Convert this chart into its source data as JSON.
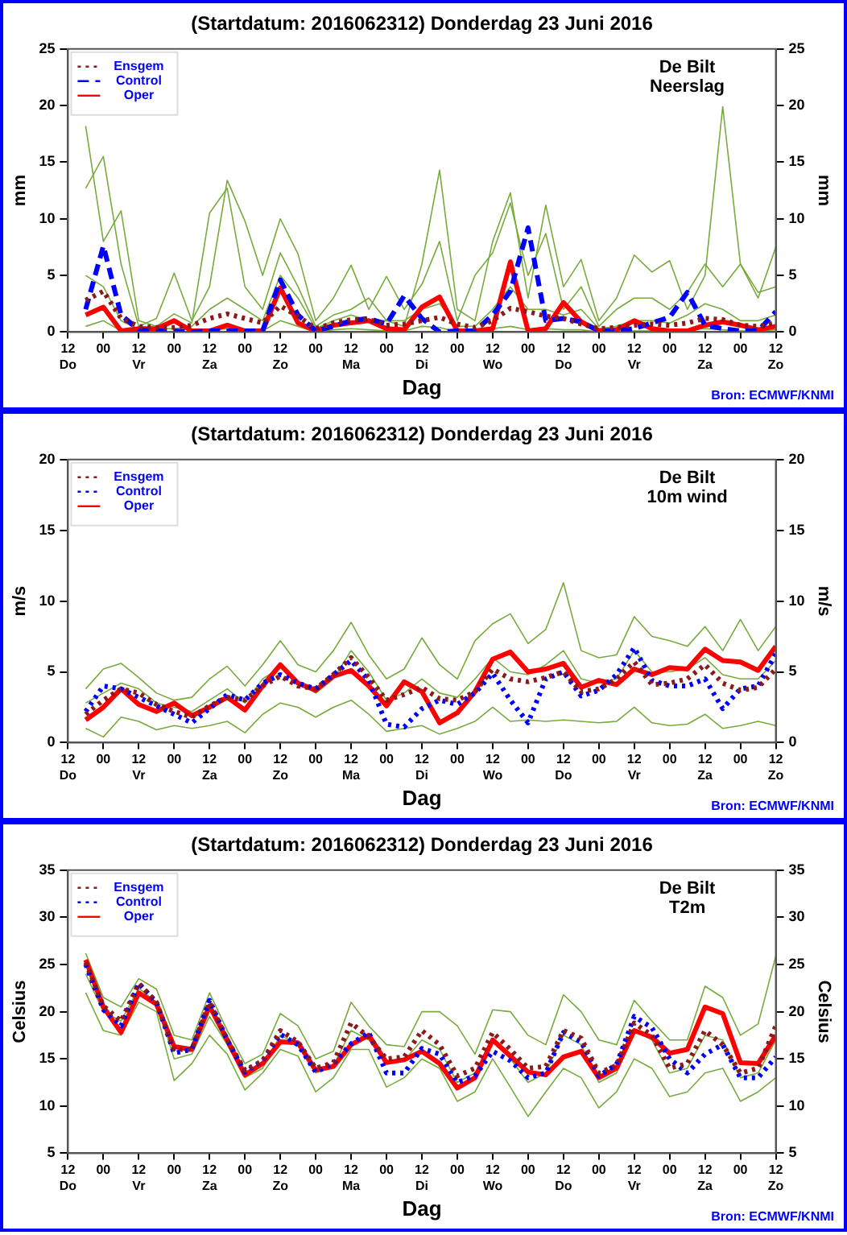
{
  "chart_data": [
    {
      "type": "line",
      "title": "(Startdatum: 2016062312) Donderdag 23 Juni 2016",
      "xlabel": "Dag",
      "ylabel": "mm",
      "y2label": "mm",
      "annotations": [
        "De Bilt",
        "Neerslag",
        "Bron: ECMWF/KNMI"
      ],
      "x": [
        "2016-06-23T18:00",
        "2016-06-24T00:00",
        "2016-06-24T06:00",
        "2016-06-24T12:00",
        "2016-06-24T18:00",
        "2016-06-25T00:00",
        "2016-06-25T06:00",
        "2016-06-25T12:00",
        "2016-06-25T18:00",
        "2016-06-26T00:00",
        "2016-06-26T06:00",
        "2016-06-26T12:00",
        "2016-06-26T18:00",
        "2016-06-27T00:00",
        "2016-06-27T06:00",
        "2016-06-27T12:00",
        "2016-06-27T18:00",
        "2016-06-28T00:00",
        "2016-06-28T06:00",
        "2016-06-28T12:00",
        "2016-06-28T18:00",
        "2016-06-29T00:00",
        "2016-06-29T06:00",
        "2016-06-29T12:00",
        "2016-06-29T18:00",
        "2016-06-30T00:00",
        "2016-06-30T06:00",
        "2016-06-30T12:00",
        "2016-06-30T18:00",
        "2016-07-01T00:00",
        "2016-07-01T06:00",
        "2016-07-01T12:00",
        "2016-07-01T18:00",
        "2016-07-02T00:00",
        "2016-07-02T06:00",
        "2016-07-02T12:00",
        "2016-07-02T18:00",
        "2016-07-03T00:00",
        "2016-07-03T06:00",
        "2016-07-03T12:00"
      ],
      "xlim": [
        "2016-06-23T12:00",
        "2016-07-03T12:00"
      ],
      "xticks": [
        {
          "value": "2016-06-23T12:00",
          "label": "12\nDo"
        },
        {
          "value": "2016-06-24T00:00",
          "label": "00"
        },
        {
          "value": "2016-06-24T12:00",
          "label": "12\nVr"
        },
        {
          "value": "2016-06-25T00:00",
          "label": "00"
        },
        {
          "value": "2016-06-25T12:00",
          "label": "12\nZa"
        },
        {
          "value": "2016-06-26T00:00",
          "label": "00"
        },
        {
          "value": "2016-06-26T12:00",
          "label": "12\nZo"
        },
        {
          "value": "2016-06-27T00:00",
          "label": "00"
        },
        {
          "value": "2016-06-27T12:00",
          "label": "12\nMa"
        },
        {
          "value": "2016-06-28T00:00",
          "label": "00"
        },
        {
          "value": "2016-06-28T12:00",
          "label": "12\nDi"
        },
        {
          "value": "2016-06-29T00:00",
          "label": "00"
        },
        {
          "value": "2016-06-29T12:00",
          "label": "12\nWo"
        },
        {
          "value": "2016-06-30T00:00",
          "label": "00"
        },
        {
          "value": "2016-06-30T12:00",
          "label": "12\nDo"
        },
        {
          "value": "2016-07-01T00:00",
          "label": "00"
        },
        {
          "value": "2016-07-01T12:00",
          "label": "12\nVr"
        },
        {
          "value": "2016-07-02T00:00",
          "label": "00"
        },
        {
          "value": "2016-07-02T12:00",
          "label": "12\nZa"
        },
        {
          "value": "2016-07-03T00:00",
          "label": "00"
        },
        {
          "value": "2016-07-03T12:00",
          "label": "12\nZo"
        }
      ],
      "ylim": [
        0,
        25
      ],
      "yticks": [
        0,
        5,
        10,
        15,
        20,
        25
      ],
      "y2lim": [
        0,
        25
      ],
      "y2ticks": [
        0,
        5,
        10,
        15,
        20,
        25
      ],
      "grid": false,
      "legend": "top left",
      "marker": "none",
      "series": [
        {
          "name": "Ensgem",
          "color": "#8b1a1a",
          "line_style": "dotted",
          "values": [
            2.8,
            3.6,
            1.2,
            0.5,
            0.4,
            0.4,
            0.6,
            1.2,
            1.6,
            1.2,
            0.8,
            2.3,
            1.4,
            0.3,
            0.8,
            1.1,
            1.1,
            0.6,
            0.7,
            1.0,
            1.3,
            0.7,
            0.4,
            1.0,
            2.1,
            1.8,
            1.4,
            1.2,
            0.7,
            0.3,
            0.4,
            0.6,
            0.7,
            0.6,
            0.8,
            1.2,
            1.1,
            0.6,
            0.5,
            0.8
          ]
        },
        {
          "name": "Control",
          "color": "#0000ff",
          "line_style": "dashed",
          "values": [
            2.0,
            7.6,
            1.5,
            0.2,
            0.1,
            0.1,
            0.0,
            0.1,
            0.1,
            0.1,
            0.1,
            4.6,
            1.5,
            0.1,
            0.5,
            1.0,
            1.2,
            0.7,
            3.2,
            1.2,
            0.0,
            0.1,
            0.1,
            1.5,
            3.6,
            9.2,
            1.0,
            1.2,
            0.9,
            0.1,
            0.1,
            0.3,
            0.8,
            1.3,
            3.5,
            0.6,
            0.3,
            0.1,
            0.1,
            1.8
          ]
        },
        {
          "name": "Oper",
          "color": "#ff0000",
          "line_style": "solid",
          "values": [
            1.5,
            2.2,
            0.1,
            0.3,
            0.3,
            1.0,
            0.1,
            0.1,
            0.6,
            0.1,
            0.1,
            3.9,
            0.8,
            0.1,
            0.6,
            0.8,
            1.0,
            0.3,
            0.2,
            2.2,
            3.1,
            0.1,
            0.1,
            0.3,
            6.2,
            0.1,
            0.3,
            2.6,
            0.9,
            0.1,
            0.2,
            1.0,
            0.3,
            0.1,
            0.1,
            0.6,
            0.9,
            0.6,
            0.2,
            0.5
          ]
        },
        {
          "color": "#78aa3c",
          "values": [
            18.2,
            8,
            10.7,
            1,
            0.5,
            1.6,
            0.8,
            10.5,
            12.7,
            4,
            2,
            7,
            4,
            0.5,
            1.5,
            2,
            3,
            1,
            0.5,
            6,
            14.3,
            2,
            1,
            8,
            12.3,
            3,
            11.2,
            4,
            6.4,
            1,
            3,
            6.8,
            5.3,
            6.3,
            2,
            5,
            19.9,
            6,
            3,
            7.5
          ]
        },
        {
          "color": "#78aa3c",
          "values": [
            12.7,
            15.5,
            6,
            0.5,
            1.2,
            5.2,
            1,
            4,
            13.4,
            9.8,
            5,
            10,
            6.9,
            1,
            3,
            5.9,
            2,
            4.9,
            2,
            4.2,
            8,
            1,
            5,
            7,
            11.4,
            5,
            8.7,
            2,
            4,
            0.5,
            2,
            3,
            3,
            2,
            3.5,
            6,
            4,
            6,
            3.5,
            4
          ]
        },
        {
          "color": "#78aa3c",
          "values": [
            5,
            4,
            1,
            0.2,
            0.3,
            0.3,
            0.5,
            2,
            3,
            2,
            1,
            5,
            3,
            0.3,
            1,
            1.5,
            1,
            1,
            1,
            2,
            2.5,
            0.5,
            0.5,
            2,
            4,
            2,
            2,
            1.5,
            2,
            0.3,
            0.5,
            1,
            1,
            0.8,
            1.5,
            2.5,
            2,
            1,
            1,
            1.5
          ]
        },
        {
          "color": "#78aa3c",
          "values": [
            0.5,
            1,
            0.1,
            0,
            0,
            0,
            0,
            0.2,
            0.3,
            0.2,
            0.1,
            1,
            0.5,
            0,
            0.2,
            0.3,
            0.2,
            0.1,
            0.1,
            0.5,
            0.4,
            0,
            0,
            0.3,
            0.5,
            0.2,
            0.3,
            0.2,
            0.2,
            0,
            0,
            0.1,
            0.1,
            0,
            0.2,
            0.3,
            0.2,
            0.1,
            0.1,
            0.2
          ]
        }
      ]
    },
    {
      "type": "line",
      "title": "(Startdatum: 2016062312) Donderdag 23 Juni 2016",
      "xlabel": "Dag",
      "ylabel": "m/s",
      "y2label": "m/s",
      "annotations": [
        "De Bilt",
        "10m wind",
        "Bron: ECMWF/KNMI"
      ],
      "x": [
        "2016-06-23T18:00",
        "2016-06-24T00:00",
        "2016-06-24T06:00",
        "2016-06-24T12:00",
        "2016-06-24T18:00",
        "2016-06-25T00:00",
        "2016-06-25T06:00",
        "2016-06-25T12:00",
        "2016-06-25T18:00",
        "2016-06-26T00:00",
        "2016-06-26T06:00",
        "2016-06-26T12:00",
        "2016-06-26T18:00",
        "2016-06-27T00:00",
        "2016-06-27T06:00",
        "2016-06-27T12:00",
        "2016-06-27T18:00",
        "2016-06-28T00:00",
        "2016-06-28T06:00",
        "2016-06-28T12:00",
        "2016-06-28T18:00",
        "2016-06-29T00:00",
        "2016-06-29T06:00",
        "2016-06-29T12:00",
        "2016-06-29T18:00",
        "2016-06-30T00:00",
        "2016-06-30T06:00",
        "2016-06-30T12:00",
        "2016-06-30T18:00",
        "2016-07-01T00:00",
        "2016-07-01T06:00",
        "2016-07-01T12:00",
        "2016-07-01T18:00",
        "2016-07-02T00:00",
        "2016-07-02T06:00",
        "2016-07-02T12:00",
        "2016-07-02T18:00",
        "2016-07-03T00:00",
        "2016-07-03T06:00",
        "2016-07-03T12:00"
      ],
      "xlim": [
        "2016-06-23T12:00",
        "2016-07-03T12:00"
      ],
      "xticks": [
        {
          "value": "2016-06-23T12:00",
          "label": "12\nDo"
        },
        {
          "value": "2016-06-24T00:00",
          "label": "00"
        },
        {
          "value": "2016-06-24T12:00",
          "label": "12\nVr"
        },
        {
          "value": "2016-06-25T00:00",
          "label": "00"
        },
        {
          "value": "2016-06-25T12:00",
          "label": "12\nZa"
        },
        {
          "value": "2016-06-26T00:00",
          "label": "00"
        },
        {
          "value": "2016-06-26T12:00",
          "label": "12\nZo"
        },
        {
          "value": "2016-06-27T00:00",
          "label": "00"
        },
        {
          "value": "2016-06-27T12:00",
          "label": "12\nMa"
        },
        {
          "value": "2016-06-28T00:00",
          "label": "00"
        },
        {
          "value": "2016-06-28T12:00",
          "label": "12\nDi"
        },
        {
          "value": "2016-06-29T00:00",
          "label": "00"
        },
        {
          "value": "2016-06-29T12:00",
          "label": "12\nWo"
        },
        {
          "value": "2016-06-30T00:00",
          "label": "00"
        },
        {
          "value": "2016-06-30T12:00",
          "label": "12\nDo"
        },
        {
          "value": "2016-07-01T00:00",
          "label": "00"
        },
        {
          "value": "2016-07-01T12:00",
          "label": "12\nVr"
        },
        {
          "value": "2016-07-02T00:00",
          "label": "00"
        },
        {
          "value": "2016-07-02T12:00",
          "label": "12\nZa"
        },
        {
          "value": "2016-07-03T00:00",
          "label": "00"
        },
        {
          "value": "2016-07-03T12:00",
          "label": "12\nZo"
        }
      ],
      "ylim": [
        0,
        20
      ],
      "yticks": [
        0,
        5,
        10,
        15,
        20
      ],
      "y2lim": [
        0,
        20
      ],
      "y2ticks": [
        0,
        5,
        10,
        15,
        20
      ],
      "grid": false,
      "legend": "top left",
      "marker": "none",
      "series": [
        {
          "name": "Ensgem",
          "color": "#8b1a1a",
          "line_style": "dotted",
          "values": [
            2.0,
            3.0,
            3.8,
            3.5,
            2.7,
            2.2,
            1.8,
            2.6,
            3.2,
            3.0,
            4.0,
            4.7,
            4.0,
            3.8,
            4.8,
            6.0,
            4.6,
            3.0,
            3.4,
            3.9,
            3.1,
            3.0,
            3.6,
            5.2,
            4.5,
            4.3,
            4.6,
            5.0,
            3.6,
            3.8,
            4.5,
            5.7,
            4.1,
            4.2,
            4.5,
            5.5,
            4.2,
            3.7,
            3.9,
            5.2
          ]
        },
        {
          "name": "Control",
          "color": "#0000ff",
          "line_style": "dotted",
          "values": [
            2.2,
            4.0,
            3.8,
            3.2,
            2.6,
            2.0,
            1.4,
            2.4,
            3.4,
            3.0,
            4.2,
            4.8,
            4.2,
            3.8,
            4.8,
            5.8,
            4.4,
            1.3,
            1.1,
            2.4,
            3.0,
            2.7,
            3.5,
            4.9,
            3.0,
            1.4,
            4.5,
            5.0,
            3.3,
            3.7,
            4.8,
            6.7,
            4.4,
            4.0,
            4.0,
            4.5,
            2.4,
            3.8,
            4.0,
            6.3
          ]
        },
        {
          "name": "Oper",
          "color": "#ff0000",
          "line_style": "solid",
          "values": [
            1.6,
            2.5,
            3.8,
            2.7,
            2.2,
            2.8,
            1.9,
            2.5,
            3.2,
            2.3,
            4.0,
            5.5,
            4.2,
            3.7,
            4.7,
            5.1,
            4.0,
            2.6,
            4.3,
            3.6,
            1.4,
            2.1,
            3.6,
            5.9,
            6.4,
            5.0,
            5.2,
            5.6,
            3.9,
            4.4,
            4.1,
            5.2,
            4.8,
            5.3,
            5.2,
            6.6,
            5.8,
            5.7,
            5.1,
            6.8
          ]
        },
        {
          "color": "#78aa3c",
          "values": [
            3.8,
            5.2,
            5.6,
            4.6,
            3.5,
            3,
            3.2,
            4.5,
            5.4,
            4,
            5.5,
            7.2,
            5.5,
            5,
            6.5,
            8.5,
            6.2,
            4.5,
            5.2,
            7.4,
            5.5,
            4.5,
            7.2,
            8.4,
            9.1,
            7,
            8,
            11.3,
            6.5,
            6,
            6.2,
            8.9,
            7.5,
            7.2,
            6.8,
            8.2,
            6.5,
            8.7,
            6.5,
            8.2
          ]
        },
        {
          "color": "#78aa3c",
          "values": [
            1,
            0.4,
            1.8,
            1.5,
            0.9,
            1.2,
            1,
            1.2,
            1.5,
            0.7,
            2,
            2.8,
            2.5,
            1.8,
            2.5,
            3,
            2,
            0.8,
            1,
            1.2,
            0.6,
            1,
            1.5,
            2.5,
            1.5,
            1.6,
            1.5,
            1.6,
            1.5,
            1.4,
            1.5,
            2.5,
            1.4,
            1.2,
            1.3,
            2,
            1,
            1.2,
            1.5,
            1.2
          ]
        },
        {
          "color": "#78aa3c",
          "values": [
            2.8,
            3.5,
            4.2,
            3.8,
            2.8,
            2.5,
            2.2,
            3,
            3.8,
            2.8,
            4.5,
            5.3,
            4.3,
            3.5,
            4.5,
            6.5,
            5,
            3,
            3.5,
            4.5,
            3.5,
            3.2,
            4.5,
            6,
            5,
            4.8,
            5.5,
            6.5,
            4.5,
            4.2,
            4.5,
            6.5,
            5,
            5,
            5.2,
            6,
            4.8,
            4.5,
            4.5,
            5.8
          ]
        }
      ]
    },
    {
      "type": "line",
      "title": "(Startdatum: 2016062312) Donderdag 23 Juni 2016",
      "xlabel": "Dag",
      "ylabel": "Celsius",
      "y2label": "Celsius",
      "annotations": [
        "De Bilt",
        "T2m",
        "Bron: ECMWF/KNMI"
      ],
      "x": [
        "2016-06-23T18:00",
        "2016-06-24T00:00",
        "2016-06-24T06:00",
        "2016-06-24T12:00",
        "2016-06-24T18:00",
        "2016-06-25T00:00",
        "2016-06-25T06:00",
        "2016-06-25T12:00",
        "2016-06-25T18:00",
        "2016-06-26T00:00",
        "2016-06-26T06:00",
        "2016-06-26T12:00",
        "2016-06-26T18:00",
        "2016-06-27T00:00",
        "2016-06-27T06:00",
        "2016-06-27T12:00",
        "2016-06-27T18:00",
        "2016-06-28T00:00",
        "2016-06-28T06:00",
        "2016-06-28T12:00",
        "2016-06-28T18:00",
        "2016-06-29T00:00",
        "2016-06-29T06:00",
        "2016-06-29T12:00",
        "2016-06-29T18:00",
        "2016-06-30T00:00",
        "2016-06-30T06:00",
        "2016-06-30T12:00",
        "2016-06-30T18:00",
        "2016-07-01T00:00",
        "2016-07-01T06:00",
        "2016-07-01T12:00",
        "2016-07-01T18:00",
        "2016-07-02T00:00",
        "2016-07-02T06:00",
        "2016-07-02T12:00",
        "2016-07-02T18:00",
        "2016-07-03T00:00",
        "2016-07-03T06:00",
        "2016-07-03T12:00"
      ],
      "xlim": [
        "2016-06-23T12:00",
        "2016-07-03T12:00"
      ],
      "xticks": [
        {
          "value": "2016-06-23T12:00",
          "label": "12\nDo"
        },
        {
          "value": "2016-06-24T00:00",
          "label": "00"
        },
        {
          "value": "2016-06-24T12:00",
          "label": "12\nVr"
        },
        {
          "value": "2016-06-25T00:00",
          "label": "00"
        },
        {
          "value": "2016-06-25T12:00",
          "label": "12\nZa"
        },
        {
          "value": "2016-06-26T00:00",
          "label": "00"
        },
        {
          "value": "2016-06-26T12:00",
          "label": "12\nZo"
        },
        {
          "value": "2016-06-27T00:00",
          "label": "00"
        },
        {
          "value": "2016-06-27T12:00",
          "label": "12\nMa"
        },
        {
          "value": "2016-06-28T00:00",
          "label": "00"
        },
        {
          "value": "2016-06-28T12:00",
          "label": "12\nDi"
        },
        {
          "value": "2016-06-29T00:00",
          "label": "00"
        },
        {
          "value": "2016-06-29T12:00",
          "label": "12\nWo"
        },
        {
          "value": "2016-06-30T00:00",
          "label": "00"
        },
        {
          "value": "2016-06-30T12:00",
          "label": "12\nDo"
        },
        {
          "value": "2016-07-01T00:00",
          "label": "00"
        },
        {
          "value": "2016-07-01T12:00",
          "label": "12\nVr"
        },
        {
          "value": "2016-07-02T00:00",
          "label": "00"
        },
        {
          "value": "2016-07-02T12:00",
          "label": "12\nZa"
        },
        {
          "value": "2016-07-03T00:00",
          "label": "00"
        },
        {
          "value": "2016-07-03T12:00",
          "label": "12\nZo"
        }
      ],
      "ylim": [
        5,
        35
      ],
      "yticks": [
        5,
        10,
        15,
        20,
        25,
        30,
        35
      ],
      "y2lim": [
        5,
        35
      ],
      "y2ticks": [
        5,
        10,
        15,
        20,
        25,
        30,
        35
      ],
      "grid": false,
      "legend": "top left",
      "marker": "none",
      "series": [
        {
          "name": "Ensgem",
          "color": "#8b1a1a",
          "line_style": "dotted",
          "values": [
            25.2,
            20.6,
            19.0,
            23.0,
            21.0,
            16.0,
            16.0,
            21.0,
            17.0,
            13.8,
            14.8,
            18.0,
            16.8,
            14.0,
            14.6,
            18.8,
            17.3,
            15.0,
            15.2,
            18.0,
            16.5,
            13.2,
            14.0,
            17.8,
            16.0,
            14.0,
            14.2,
            18.0,
            17.2,
            13.5,
            14.3,
            18.8,
            17.5,
            14.0,
            14.5,
            18.0,
            16.5,
            13.5,
            14.0,
            18.5
          ]
        },
        {
          "name": "Control",
          "color": "#0000ff",
          "line_style": "dotted",
          "values": [
            25.0,
            20.2,
            18.5,
            23.0,
            21.0,
            15.6,
            16.0,
            21.2,
            17.0,
            13.6,
            14.8,
            17.6,
            16.5,
            13.6,
            14.5,
            16.6,
            17.8,
            13.5,
            13.5,
            16.1,
            15.5,
            12.5,
            13.2,
            15.8,
            14.8,
            13.0,
            13.5,
            17.8,
            16.8,
            13.2,
            14.4,
            19.5,
            18.3,
            15.0,
            13.5,
            15.5,
            16.5,
            13.0,
            13.0,
            15.2
          ]
        },
        {
          "name": "Oper",
          "color": "#ff0000",
          "line_style": "solid",
          "values": [
            25.5,
            20.5,
            17.8,
            22.0,
            20.8,
            16.3,
            16.0,
            20.6,
            17.0,
            13.3,
            14.5,
            16.8,
            16.7,
            13.8,
            14.2,
            16.5,
            17.5,
            14.6,
            14.9,
            15.8,
            14.5,
            11.9,
            13.0,
            17.0,
            15.3,
            13.6,
            13.3,
            15.2,
            15.8,
            13.0,
            14.0,
            18.0,
            17.3,
            15.6,
            16.0,
            20.5,
            19.8,
            14.6,
            14.5,
            17.5
          ]
        },
        {
          "color": "#78aa3c",
          "values": [
            26.2,
            21.5,
            20.5,
            23.5,
            22.4,
            17.5,
            17,
            22,
            18,
            14.5,
            15.5,
            19.8,
            18.5,
            15,
            15.8,
            21,
            18.5,
            16.5,
            16.3,
            20,
            20,
            18.5,
            15.5,
            20.2,
            20,
            17.5,
            16.5,
            21.8,
            20,
            17,
            16.5,
            21.2,
            19,
            17,
            17,
            22.7,
            21.5,
            17.5,
            18.7,
            25.9
          ]
        },
        {
          "color": "#78aa3c",
          "values": [
            22,
            18,
            17.5,
            21,
            20,
            12.7,
            14.5,
            17.5,
            15.5,
            11.7,
            13.5,
            16,
            15.3,
            11.5,
            13,
            16,
            16,
            12,
            13,
            15,
            14,
            10.5,
            11.5,
            15,
            12,
            8.9,
            11.5,
            14,
            13,
            9.8,
            11.5,
            15,
            14,
            11,
            11.5,
            13.5,
            14,
            10.5,
            11.5,
            13
          ]
        },
        {
          "color": "#78aa3c",
          "values": [
            24,
            20,
            19,
            22.5,
            21,
            15,
            15.5,
            19.5,
            16.5,
            13,
            14,
            17.5,
            16.5,
            13.5,
            14.3,
            18,
            17,
            14.5,
            14.8,
            17,
            16,
            12.5,
            13.5,
            17,
            15,
            12.5,
            13.5,
            17.5,
            16.5,
            12.5,
            13.5,
            18,
            17,
            13.5,
            14,
            17.5,
            17,
            13,
            13.5,
            17
          ]
        }
      ]
    }
  ]
}
